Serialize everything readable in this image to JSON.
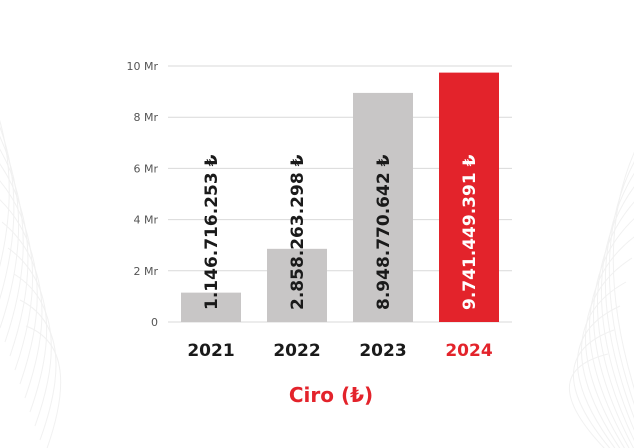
{
  "chart_data": {
    "type": "bar",
    "categories": [
      "2021",
      "2022",
      "2023",
      "2024"
    ],
    "values": [
      1146716253,
      2858263298,
      8948770642,
      9741449391
    ],
    "value_labels": [
      "1.146.716.253 ₺",
      "2.858.263.298 ₺",
      "8.948.770.642 ₺",
      "9.741.449.391 ₺"
    ],
    "title": "Ciro (₺)",
    "xlabel": "",
    "ylabel": "",
    "ylim": [
      0,
      10000000000
    ],
    "yticks": [
      0,
      2000000000,
      4000000000,
      6000000000,
      8000000000,
      10000000000
    ],
    "ytick_labels": [
      "0",
      "2 Mr",
      "4 Mr",
      "6 Mr",
      "8 Mr",
      "10 Mr"
    ],
    "grid": true,
    "legend": "none",
    "highlight_index": 3
  },
  "colors": {
    "bar": "#c8c6c6",
    "highlight": "#e3232b",
    "label_dark": "#1a1a1a",
    "label_light": "#ffffff",
    "grid": "#d9d9d9",
    "title": "#e3232b"
  }
}
